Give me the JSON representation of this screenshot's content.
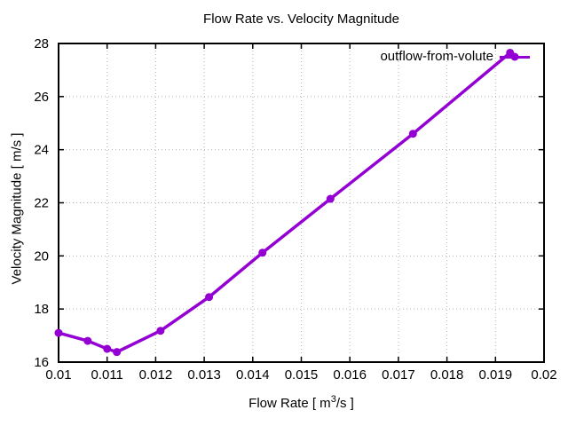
{
  "figure": {
    "background": "#ffffff",
    "text_color": "#000000"
  },
  "chart_data": {
    "type": "line",
    "title": "Flow Rate vs. Velocity Magnitude",
    "xlabel": "Flow Rate [ m^3/s ]",
    "xlabel_parts": {
      "prefix": "Flow Rate [ m",
      "superscript": "3",
      "suffix": "/s ]"
    },
    "ylabel": "Velocity Magnitude [ m/s ]",
    "xlim": [
      0.01,
      0.02
    ],
    "ylim": [
      16,
      28
    ],
    "xticks": [
      0.01,
      0.011,
      0.012,
      0.013,
      0.014,
      0.015,
      0.016,
      0.017,
      0.018,
      0.019,
      0.02
    ],
    "xtick_labels": [
      "0.01",
      "0.011",
      "0.012",
      "0.013",
      "0.014",
      "0.015",
      "0.016",
      "0.017",
      "0.018",
      "0.019",
      "0.02"
    ],
    "yticks": [
      16,
      18,
      20,
      22,
      24,
      26,
      28
    ],
    "ytick_labels": [
      "16",
      "18",
      "20",
      "22",
      "24",
      "26",
      "28"
    ],
    "grid": {
      "shown": true,
      "style": "dotted",
      "color": "#b4b4b4"
    },
    "axis_color": "#000000",
    "legend": {
      "position": "top-right-inside",
      "label": "outflow-from-volute"
    },
    "series": [
      {
        "name": "outflow-from-volute",
        "color": "#9400d3",
        "marker": "filled-circle",
        "x": [
          0.01,
          0.0106,
          0.011,
          0.0112,
          0.0121,
          0.0131,
          0.0142,
          0.0156,
          0.0173,
          0.0193
        ],
        "y": [
          17.1,
          16.8,
          16.5,
          16.38,
          17.18,
          18.45,
          20.12,
          22.15,
          24.6,
          27.65
        ]
      }
    ]
  }
}
